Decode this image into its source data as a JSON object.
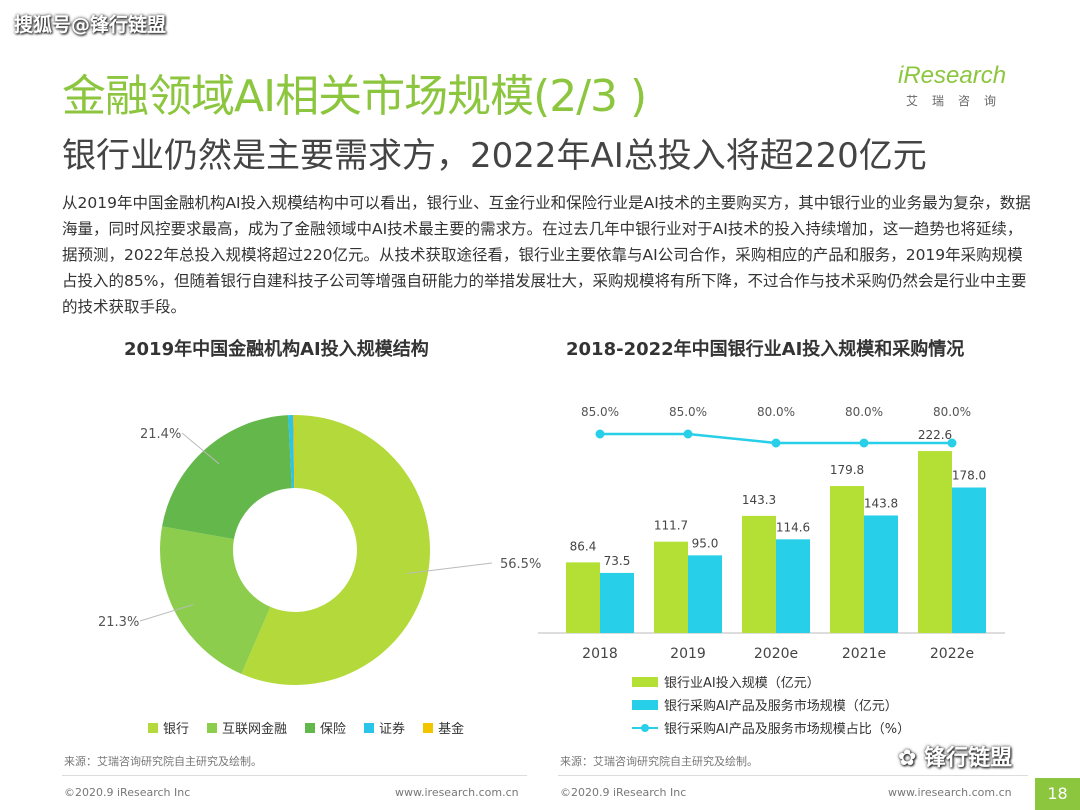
{
  "watermark": "搜狐号@锋行链盟",
  "title": "金融领域AI相关市场规模(2/3 )",
  "subtitle": "银行业仍然是主要需求方，2022年AI总投入将超220亿元",
  "logo": {
    "brand": "iResearch",
    "brand_sub": "艾瑞咨询"
  },
  "body_text": "从2019年中国金融机构AI投入规模结构中可以看出，银行业、互金行业和保险行业是AI技术的主要购买方，其中银行业的业务最为复杂，数据海量，同时风控要求最高，成为了金融领域中AI技术最主要的需求方。在过去几年中银行业对于AI技术的投入持续增加，这一趋势也将延续，据预测，2022年总投入规模将超过220亿元。从技术获取途径看，银行业主要依靠与AI公司合作，采购相应的产品和服务，2019年采购规模占投入的85%，但随着银行自建科技子公司等增强自研能力的举措发展壮大，采购规模将有所下降，不过合作与技术采购仍然会是行业中主要的技术获取手段。",
  "chart_data": [
    {
      "type": "pie",
      "title": "2019年中国金融机构AI投入规模结构",
      "categories": [
        "银行",
        "互联网金融",
        "保险",
        "证券",
        "基金"
      ],
      "values": [
        56.5,
        21.3,
        21.4,
        0.6,
        0.2
      ],
      "labels": [
        "56.5%",
        "21.3%",
        "21.4%"
      ],
      "colors": [
        "#b4d93a",
        "#8ccd4d",
        "#64b84b",
        "#2bc5ea",
        "#f2c500"
      ],
      "legend_position": "bottom"
    },
    {
      "type": "bar",
      "title": "2018-2022年中国银行业AI投入规模和采购情况",
      "categories": [
        "2018",
        "2019",
        "2020e",
        "2021e",
        "2022e"
      ],
      "series": [
        {
          "name": "银行业AI投入规模（亿元）",
          "values": [
            86.4,
            111.7,
            143.3,
            179.8,
            222.6
          ],
          "labels": [
            "86.4",
            "111.7",
            "143.3",
            "179.8",
            "222.6"
          ],
          "color": "#b4df34"
        },
        {
          "name": "银行采购AI产品及服务市场规模（亿元）",
          "values": [
            73.5,
            95.0,
            114.6,
            143.8,
            178.0
          ],
          "labels": [
            "73.5",
            "95.0",
            "114.6",
            "143.8",
            "178.0"
          ],
          "color": "#28cfe8"
        },
        {
          "name": "银行采购AI产品及服务市场规模占比（%）",
          "type": "line",
          "values": [
            85.0,
            85.0,
            80.0,
            80.0,
            80.0
          ],
          "labels": [
            "85.0%",
            "85.0%",
            "80.0%",
            "80.0%",
            "80.0%"
          ],
          "color": "#28cfe8"
        }
      ],
      "ylim": [
        0,
        240
      ],
      "grid": false,
      "legend_position": "bottom"
    }
  ],
  "footer": {
    "source_left": "来源：艾瑞咨询研究院自主研究及绘制。",
    "source_right": "来源：艾瑞咨询研究院自主研究及绘制。",
    "copyright_left": "©2020.9 iResearch Inc",
    "url_left": "www.iresearch.com.cn",
    "copyright_right": "©2020.9 iResearch Inc",
    "url_right": "www.iresearch.com.cn",
    "wechat": "锋行链盟",
    "page_number": "18"
  },
  "colors": {
    "accent": "#8cc63e"
  }
}
